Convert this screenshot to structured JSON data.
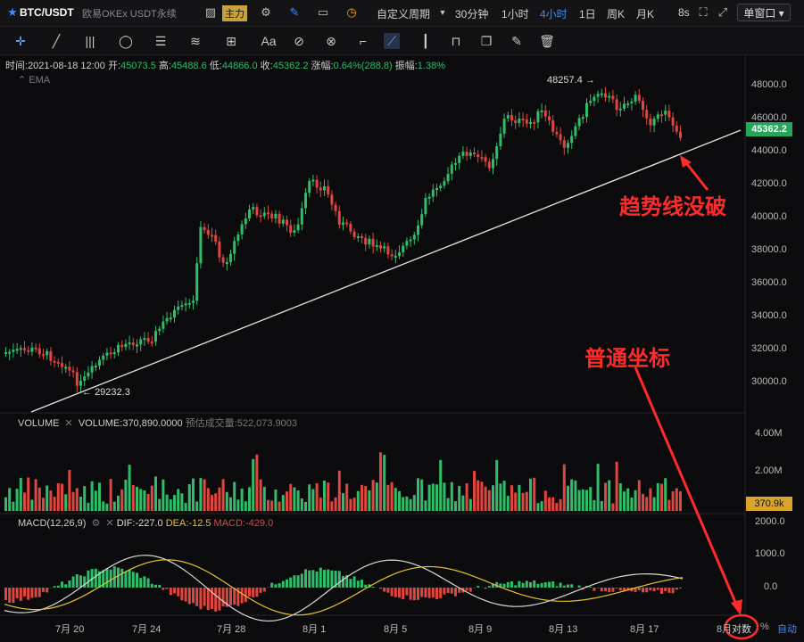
{
  "topbar": {
    "symbol": "BTC/USDT",
    "exchange": "欧易OKEx USDT永续",
    "main_label": "主力",
    "custom_period": "自定义周期",
    "periods": [
      "30分钟",
      "1小时",
      "4小时",
      "1日",
      "周K",
      "月K"
    ],
    "active_period": "4小时",
    "refresh": "8s",
    "window_mode": "单窗口"
  },
  "infobar": {
    "time_label": "时间:",
    "time": "2021-08-18 12:00",
    "open_label": "开:",
    "open": "45073.5",
    "high_label": "高:",
    "high": "45488.6",
    "low_label": "低:",
    "low": "44866.0",
    "close_label": "收:",
    "close": "45362.2",
    "change_label": "涨幅:",
    "change": "0.64%(288.8)",
    "amp_label": "振幅:",
    "amp": "1.38%"
  },
  "ema_label": "EMA",
  "price_axis": [
    "48000.0",
    "46000.0",
    "44000.0",
    "42000.0",
    "40000.0",
    "38000.0",
    "36000.0",
    "34000.0",
    "32000.0",
    "30000.0"
  ],
  "price_tag": "45362.2",
  "high_mark": "48257.4",
  "low_mark": "29232.3",
  "volume": {
    "title": "VOLUME",
    "value_text": "VOLUME:370,890.0000",
    "est_text": "预估成交量:522,073.9003",
    "axis": [
      "4.00M",
      "2.00M"
    ],
    "tag": "370.9k"
  },
  "macd": {
    "title": "MACD(12,26,9)",
    "dif": "DIF:-227.0",
    "dea": "DEA:-12.5",
    "macd": "MACD:-429.0",
    "axis": [
      "2000.0",
      "1000.0",
      "0.0"
    ]
  },
  "date_axis": [
    "7月 20",
    "7月 24",
    "7月 28",
    "8月 1",
    "8月 5",
    "8月 9",
    "8月 13",
    "8月 17",
    "8月"
  ],
  "bottom": {
    "log_label": "对数",
    "percent_label": "%",
    "auto_label": "自动"
  },
  "annotations": {
    "trendline": "趋势线没破",
    "normal_axis": "普通坐标"
  },
  "colors": {
    "up": "#2fbd6a",
    "down": "#e0463e",
    "accent": "#2f7fe0",
    "annotation": "#ff2a2a",
    "dea": "#e8c22e"
  }
}
